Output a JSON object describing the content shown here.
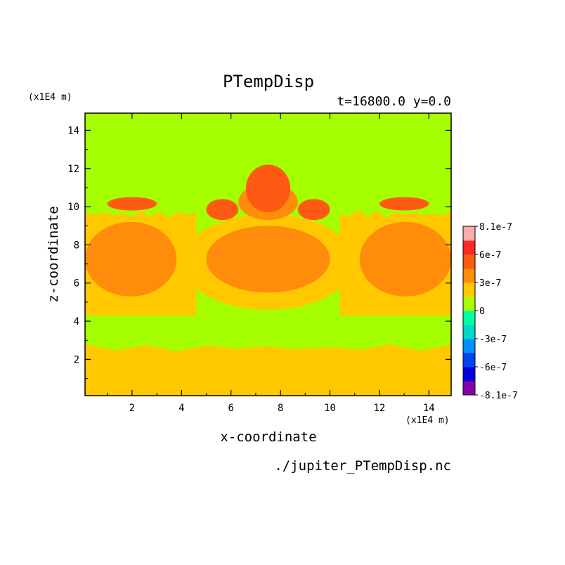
{
  "chart_data": {
    "type": "heatmap",
    "title": "PTempDisp",
    "subtitle": "t=16800.0 y=0.0",
    "xlabel": "x-coordinate",
    "ylabel": "z-coordinate",
    "x_unit": "(x1E4 m)",
    "z_unit": "(x1E4 m)",
    "source_file": "./jupiter_PTempDisp.nc",
    "xlim": [
      0.1,
      14.9
    ],
    "ylim": [
      0.1,
      14.9
    ],
    "x_ticks": [
      2,
      4,
      6,
      8,
      10,
      12,
      14
    ],
    "y_ticks": [
      2,
      4,
      6,
      8,
      10,
      12,
      14
    ],
    "x_tick_labels": [
      "2",
      "4",
      "6",
      "8",
      "10",
      "12",
      "14"
    ],
    "y_tick_labels": [
      "2",
      "4",
      "6",
      "8",
      "10",
      "12",
      "14"
    ],
    "grid": false,
    "colorbar": {
      "placement": "right",
      "levels": [
        -8.1e-07,
        -6e-07,
        -3e-07,
        0,
        3e-07,
        6e-07,
        8.1e-07
      ],
      "tick_labels": [
        "8.1e-7",
        "6e-7",
        "3e-7",
        "0",
        "-3e-7",
        "-6e-7",
        "-8.1e-7"
      ],
      "colors_bottom_to_top": [
        "#8800aa",
        "#0000d8",
        "#0044f0",
        "#0090ff",
        "#00d8c8",
        "#00ffaa",
        "#a6ff00",
        "#ffc800",
        "#ff8c0a",
        "#ff5a14",
        "#ff2828",
        "#ffaaaa"
      ]
    },
    "regions": [
      {
        "level": "3e-7",
        "color": "#ffc800",
        "shape": "band",
        "x": [
          0.1,
          14.9
        ],
        "z": [
          0.1,
          2.8
        ]
      },
      {
        "level": "3e-7",
        "color": "#ffc800",
        "shape": "band",
        "x": [
          0.1,
          4.6
        ],
        "z": [
          4.3,
          9.8
        ]
      },
      {
        "level": "3e-7",
        "color": "#ffc800",
        "shape": "band",
        "x": [
          10.4,
          14.9
        ],
        "z": [
          4.3,
          9.8
        ]
      },
      {
        "level": "3e-7",
        "color": "#ffc800",
        "shape": "blob",
        "x": [
          4.0,
          11.0
        ],
        "z": [
          4.6,
          9.6
        ]
      },
      {
        "level": "6e-7",
        "color": "#ff8c0a",
        "shape": "blob",
        "x": [
          0.1,
          3.8
        ],
        "z": [
          5.3,
          9.2
        ]
      },
      {
        "level": "6e-7",
        "color": "#ff8c0a",
        "shape": "blob",
        "x": [
          11.2,
          14.9
        ],
        "z": [
          5.3,
          9.2
        ]
      },
      {
        "level": "6e-7",
        "color": "#ff8c0a",
        "shape": "blob",
        "x": [
          5.0,
          10.0
        ],
        "z": [
          5.5,
          9.0
        ]
      },
      {
        "level": "6e-7",
        "color": "#ff8c0a",
        "shape": "blob",
        "x": [
          6.3,
          8.7
        ],
        "z": [
          9.3,
          11.2
        ]
      },
      {
        "level": "8.1e-7",
        "color": "#ff5a14",
        "shape": "blob",
        "x": [
          6.6,
          8.4
        ],
        "z": [
          9.7,
          12.2
        ]
      },
      {
        "level": "8.1e-7",
        "color": "#ff5a14",
        "shape": "blob",
        "x": [
          5.0,
          6.3
        ],
        "z": [
          9.3,
          10.4
        ]
      },
      {
        "level": "8.1e-7",
        "color": "#ff5a14",
        "shape": "blob",
        "x": [
          8.7,
          10.0
        ],
        "z": [
          9.3,
          10.4
        ]
      },
      {
        "level": "8.1e-7",
        "color": "#ff5a14",
        "shape": "blob",
        "x": [
          1.0,
          3.0
        ],
        "z": [
          9.8,
          10.5
        ]
      },
      {
        "level": "8.1e-7",
        "color": "#ff5a14",
        "shape": "blob",
        "x": [
          12.0,
          14.0
        ],
        "z": [
          9.8,
          10.5
        ]
      }
    ]
  }
}
